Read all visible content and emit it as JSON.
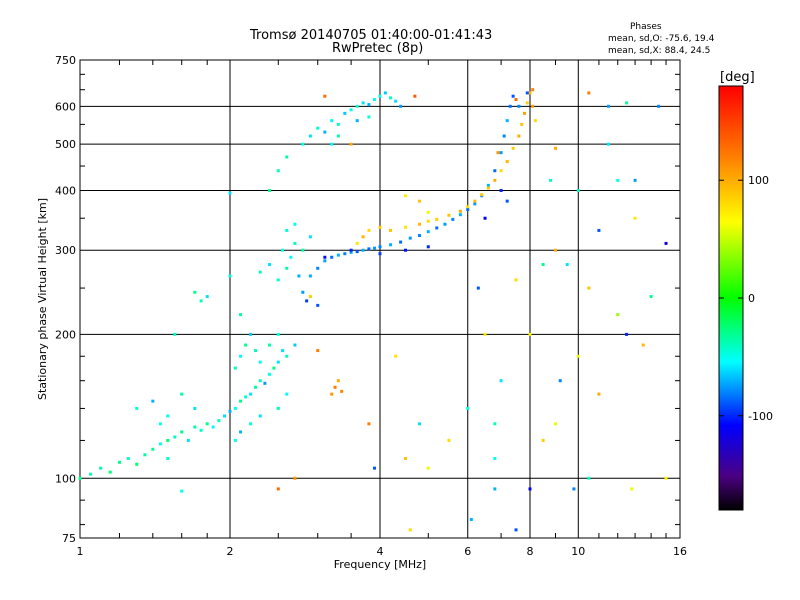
{
  "title": "Tromsø 20140705 01:40:00-01:41:43",
  "subtitle": "RwPretec (8p)",
  "stats": {
    "heading": "Phases",
    "line_o": "mean, sd,O:  -75.6, 19.4",
    "line_x": "mean, sd,X:  88.4, 24.5"
  },
  "colorbar": {
    "unit": "[deg]",
    "ticks": [
      {
        "value": 100,
        "label": "100"
      },
      {
        "value": 0,
        "label": "0"
      },
      {
        "value": -100,
        "label": "-100"
      }
    ],
    "range": [
      -180,
      180
    ],
    "palette": "rainbow"
  },
  "chart_data": {
    "type": "scatter",
    "title": "Tromsø 20140705 01:40:00-01:41:43",
    "subtitle": "RwPretec (8p)",
    "xlabel": "Frequency [MHz]",
    "ylabel": "Stationary phase Virtual Height [km]",
    "xscale": "log",
    "yscale": "log",
    "xlim": [
      1,
      16
    ],
    "ylim": [
      75,
      750
    ],
    "xticks": [
      {
        "value": 1,
        "label": "1"
      },
      {
        "value": 2,
        "label": "2"
      },
      {
        "value": 4,
        "label": "4"
      },
      {
        "value": 6,
        "label": "6"
      },
      {
        "value": 8,
        "label": "8"
      },
      {
        "value": 10,
        "label": "10"
      },
      {
        "value": 16,
        "label": "16"
      }
    ],
    "yticks": [
      {
        "value": 75,
        "label": "75"
      },
      {
        "value": 100,
        "label": "100"
      },
      {
        "value": 200,
        "label": "200"
      },
      {
        "value": 300,
        "label": "300"
      },
      {
        "value": 400,
        "label": "400"
      },
      {
        "value": 500,
        "label": "500"
      },
      {
        "value": 600,
        "label": "600"
      },
      {
        "value": 750,
        "label": "750"
      }
    ],
    "grid": true,
    "series": [
      {
        "values": [
          [
            1.0,
            100,
            -30
          ],
          [
            1.05,
            102,
            -40
          ],
          [
            1.1,
            105,
            -35
          ],
          [
            1.15,
            103,
            -25
          ],
          [
            1.2,
            108,
            -30
          ],
          [
            1.25,
            110,
            -45
          ],
          [
            1.3,
            107,
            -20
          ],
          [
            1.35,
            112,
            -35
          ],
          [
            1.4,
            115,
            -30
          ],
          [
            1.45,
            118,
            -50
          ],
          [
            1.5,
            120,
            -25
          ],
          [
            1.55,
            122,
            -40
          ],
          [
            1.6,
            125,
            -30
          ],
          [
            1.65,
            120,
            -60
          ],
          [
            1.7,
            128,
            -35
          ],
          [
            1.75,
            126,
            -45
          ],
          [
            1.8,
            130,
            -30
          ],
          [
            1.85,
            128,
            -55
          ],
          [
            1.9,
            132,
            -40
          ],
          [
            1.95,
            135,
            -60
          ],
          [
            2.0,
            138,
            -70
          ],
          [
            2.05,
            140,
            -50
          ],
          [
            2.1,
            145,
            -30
          ],
          [
            2.15,
            148,
            -45
          ],
          [
            2.2,
            150,
            -60
          ],
          [
            2.25,
            155,
            -35
          ],
          [
            2.3,
            160,
            -40
          ],
          [
            2.35,
            158,
            -75
          ],
          [
            2.4,
            165,
            -50
          ],
          [
            2.45,
            170,
            -30
          ],
          [
            2.5,
            175,
            -60
          ],
          [
            1.3,
            140,
            -45
          ],
          [
            1.4,
            145,
            -70
          ],
          [
            1.5,
            135,
            -50
          ],
          [
            1.6,
            150,
            -35
          ],
          [
            1.7,
            140,
            -60
          ],
          [
            2.05,
            170,
            -40
          ],
          [
            2.1,
            180,
            -55
          ],
          [
            2.15,
            190,
            -30
          ],
          [
            2.2,
            200,
            -65
          ],
          [
            2.25,
            185,
            -40
          ],
          [
            2.3,
            175,
            -50
          ],
          [
            2.4,
            190,
            -35
          ],
          [
            2.5,
            200,
            -45
          ],
          [
            2.55,
            185,
            -60
          ],
          [
            2.6,
            180,
            -40
          ],
          [
            2.05,
            120,
            -50
          ],
          [
            2.1,
            125,
            -70
          ],
          [
            2.2,
            130,
            -45
          ],
          [
            2.3,
            135,
            -60
          ],
          [
            2.5,
            140,
            -35
          ],
          [
            2.6,
            150,
            -55
          ],
          [
            1.7,
            245,
            -30
          ],
          [
            1.75,
            235,
            -40
          ],
          [
            1.8,
            240,
            -60
          ],
          [
            2.3,
            270,
            -40
          ],
          [
            2.4,
            280,
            -60
          ],
          [
            2.5,
            260,
            -45
          ],
          [
            2.55,
            300,
            -50
          ],
          [
            2.6,
            275,
            -35
          ],
          [
            2.65,
            290,
            -55
          ],
          [
            2.7,
            310,
            -40
          ],
          [
            2.75,
            265,
            -70
          ],
          [
            2.6,
            330,
            -45
          ],
          [
            2.7,
            340,
            -50
          ],
          [
            2.8,
            300,
            -35
          ],
          [
            2.9,
            320,
            -60
          ],
          [
            2.4,
            400,
            -30
          ],
          [
            2.5,
            440,
            -40
          ],
          [
            2.6,
            470,
            -35
          ],
          [
            2.8,
            500,
            -50
          ],
          [
            2.9,
            520,
            -60
          ],
          [
            3.0,
            540,
            -45
          ],
          [
            3.1,
            530,
            -70
          ],
          [
            3.2,
            560,
            -55
          ],
          [
            3.3,
            550,
            -40
          ],
          [
            3.4,
            580,
            -65
          ],
          [
            3.5,
            590,
            -50
          ],
          [
            3.6,
            600,
            -45
          ],
          [
            3.7,
            610,
            -60
          ],
          [
            3.8,
            605,
            -70
          ],
          [
            3.9,
            620,
            -55
          ],
          [
            4.0,
            630,
            -50
          ],
          [
            4.1,
            640,
            -65
          ],
          [
            4.2,
            625,
            -40
          ],
          [
            4.3,
            615,
            -60
          ],
          [
            4.4,
            600,
            -75
          ],
          [
            3.2,
            500,
            -55
          ],
          [
            3.3,
            520,
            -35
          ],
          [
            3.6,
            560,
            -70
          ],
          [
            3.8,
            570,
            -45
          ],
          [
            2.8,
            245,
            -75
          ],
          [
            2.9,
            265,
            -70
          ],
          [
            3.0,
            275,
            -80
          ],
          [
            3.1,
            285,
            -75
          ],
          [
            3.2,
            290,
            -85
          ],
          [
            3.3,
            293,
            -70
          ],
          [
            3.4,
            295,
            -80
          ],
          [
            3.5,
            297,
            -75
          ],
          [
            3.6,
            298,
            -90
          ],
          [
            3.7,
            300,
            -70
          ],
          [
            3.8,
            302,
            -85
          ],
          [
            3.9,
            303,
            -75
          ],
          [
            4.0,
            305,
            -80
          ],
          [
            4.2,
            308,
            -70
          ],
          [
            4.4,
            312,
            -85
          ],
          [
            4.6,
            318,
            -75
          ],
          [
            4.8,
            322,
            -80
          ],
          [
            5.0,
            328,
            -70
          ],
          [
            5.2,
            334,
            -85
          ],
          [
            5.4,
            340,
            -75
          ],
          [
            5.6,
            348,
            -80
          ],
          [
            5.8,
            356,
            -70
          ],
          [
            6.0,
            365,
            -85
          ],
          [
            6.2,
            375,
            -75
          ],
          [
            6.4,
            390,
            -80
          ],
          [
            6.6,
            410,
            -70
          ],
          [
            6.8,
            440,
            -85
          ],
          [
            7.0,
            480,
            -75
          ],
          [
            7.1,
            520,
            -80
          ],
          [
            7.2,
            560,
            -70
          ],
          [
            7.3,
            600,
            -85
          ],
          [
            7.4,
            630,
            -90
          ],
          [
            3.0,
            230,
            -90
          ],
          [
            2.85,
            235,
            -95
          ],
          [
            3.1,
            290,
            -105
          ],
          [
            3.5,
            300,
            -100
          ],
          [
            4.0,
            295,
            -95
          ],
          [
            4.5,
            300,
            -105
          ],
          [
            5.0,
            305,
            -100
          ],
          [
            3.8,
            330,
            80
          ],
          [
            4.0,
            335,
            85
          ],
          [
            4.2,
            330,
            90
          ],
          [
            4.5,
            335,
            75
          ],
          [
            4.8,
            340,
            95
          ],
          [
            5.0,
            345,
            80
          ],
          [
            5.2,
            348,
            85
          ],
          [
            5.5,
            355,
            90
          ],
          [
            5.8,
            362,
            100
          ],
          [
            6.0,
            370,
            80
          ],
          [
            6.2,
            380,
            95
          ],
          [
            6.4,
            392,
            85
          ],
          [
            6.6,
            405,
            90
          ],
          [
            6.8,
            420,
            100
          ],
          [
            7.0,
            440,
            80
          ],
          [
            7.2,
            460,
            95
          ],
          [
            7.4,
            490,
            85
          ],
          [
            7.6,
            520,
            100
          ],
          [
            7.7,
            550,
            90
          ],
          [
            7.8,
            580,
            105
          ],
          [
            7.9,
            610,
            85
          ],
          [
            8.0,
            640,
            95
          ],
          [
            8.1,
            600,
            110
          ],
          [
            8.2,
            560,
            80
          ],
          [
            3.2,
            150,
            110
          ],
          [
            3.25,
            155,
            120
          ],
          [
            3.3,
            160,
            100
          ],
          [
            3.35,
            152,
            115
          ],
          [
            4.5,
            390,
            70
          ],
          [
            4.8,
            380,
            90
          ],
          [
            5.0,
            360,
            60
          ],
          [
            3.6,
            310,
            75
          ],
          [
            3.7,
            320,
            95
          ],
          [
            3.1,
            630,
            130
          ],
          [
            4.7,
            630,
            140
          ],
          [
            8.1,
            650,
            120
          ],
          [
            7.5,
            620,
            130
          ],
          [
            6.9,
            480,
            110
          ],
          [
            7.0,
            400,
            -100
          ],
          [
            7.2,
            380,
            -90
          ],
          [
            6.5,
            350,
            -110
          ],
          [
            7.6,
            600,
            -80
          ],
          [
            7.9,
            640,
            -90
          ],
          [
            9.0,
            300,
            100
          ],
          [
            9.5,
            280,
            -60
          ],
          [
            10.0,
            400,
            -40
          ],
          [
            10.5,
            250,
            90
          ],
          [
            11.0,
            330,
            -90
          ],
          [
            11.5,
            600,
            -75
          ],
          [
            12.0,
            220,
            40
          ],
          [
            12.5,
            200,
            -100
          ],
          [
            13.0,
            350,
            75
          ],
          [
            14.0,
            240,
            -30
          ],
          [
            15.0,
            310,
            -120
          ],
          [
            13.5,
            190,
            95
          ],
          [
            12.0,
            420,
            -50
          ],
          [
            10.0,
            180,
            60
          ],
          [
            9.2,
            160,
            -80
          ],
          [
            11.0,
            150,
            100
          ],
          [
            4.3,
            180,
            75
          ],
          [
            4.5,
            110,
            90
          ],
          [
            5.0,
            105,
            60
          ],
          [
            5.5,
            120,
            80
          ],
          [
            6.0,
            140,
            -50
          ],
          [
            6.3,
            250,
            -90
          ],
          [
            6.5,
            200,
            75
          ],
          [
            6.8,
            95,
            -70
          ],
          [
            6.8,
            110,
            -50
          ],
          [
            6.8,
            130,
            -40
          ],
          [
            7.0,
            160,
            -60
          ],
          [
            7.5,
            260,
            80
          ],
          [
            8.0,
            200,
            70
          ],
          [
            8.5,
            280,
            -30
          ],
          [
            8.5,
            120,
            85
          ],
          [
            9.0,
            130,
            60
          ],
          [
            3.5,
            500,
            100
          ],
          [
            3.8,
            130,
            120
          ],
          [
            4.8,
            130,
            -60
          ],
          [
            3.9,
            105,
            -90
          ],
          [
            2.5,
            95,
            130
          ],
          [
            2.7,
            100,
            110
          ],
          [
            2.9,
            240,
            85
          ],
          [
            3.0,
            185,
            120
          ],
          [
            1.6,
            94,
            -50
          ],
          [
            1.5,
            110,
            -45
          ],
          [
            1.45,
            130,
            -50
          ],
          [
            1.55,
            200,
            -40
          ],
          [
            2.0,
            395,
            -60
          ],
          [
            2.0,
            265,
            -45
          ],
          [
            2.7,
            190,
            -65
          ],
          [
            2.1,
            220,
            -35
          ],
          [
            9.8,
            95,
            -80
          ],
          [
            10.5,
            100,
            -40
          ],
          [
            12.8,
            95,
            60
          ],
          [
            15.0,
            100,
            70
          ],
          [
            8.0,
            95,
            -110
          ],
          [
            4.6,
            78,
            80
          ],
          [
            6.1,
            82,
            -70
          ],
          [
            7.5,
            78,
            -90
          ],
          [
            14.5,
            600,
            -80
          ],
          [
            12.5,
            610,
            -30
          ],
          [
            10.5,
            640,
            120
          ],
          [
            11.5,
            500,
            -60
          ],
          [
            9.0,
            490,
            100
          ],
          [
            8.8,
            420,
            -40
          ],
          [
            13.0,
            420,
            -75
          ]
        ]
      }
    ]
  }
}
